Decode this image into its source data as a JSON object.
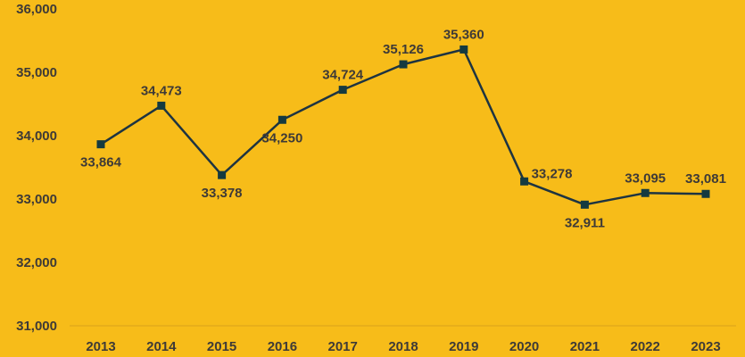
{
  "colors": {
    "background": "#F7BC19",
    "line": "#1E3441",
    "marker": "#153A40",
    "text": "#3E3A37",
    "axis": "#D9A21A"
  },
  "chart_data": {
    "type": "line",
    "title": "",
    "xlabel": "",
    "ylabel": "",
    "categories": [
      "2013",
      "2014",
      "2015",
      "2016",
      "2017",
      "2018",
      "2019",
      "2020",
      "2021",
      "2022",
      "2023"
    ],
    "series": [
      {
        "values": [
          33864,
          34473,
          33378,
          34250,
          34724,
          35126,
          35360,
          33278,
          32911,
          33095,
          33081
        ],
        "data_labels": [
          "33,864",
          "34,473",
          "33,378",
          "34,250",
          "34,724",
          "35,126",
          "35,360",
          "33,278",
          "32,911",
          "33,095",
          "33,081"
        ],
        "label_positions": [
          "below",
          "above",
          "below",
          "below",
          "above",
          "above",
          "above",
          "right",
          "below",
          "above",
          "above"
        ],
        "marker": "square"
      }
    ],
    "ylim": [
      31000,
      36000
    ],
    "y_ticks": [
      31000,
      32000,
      33000,
      34000,
      35000,
      36000
    ],
    "y_tick_labels": [
      "31,000",
      "32,000",
      "33,000",
      "34,000",
      "35,000",
      "36,000"
    ],
    "grid": false,
    "legend": "none"
  }
}
